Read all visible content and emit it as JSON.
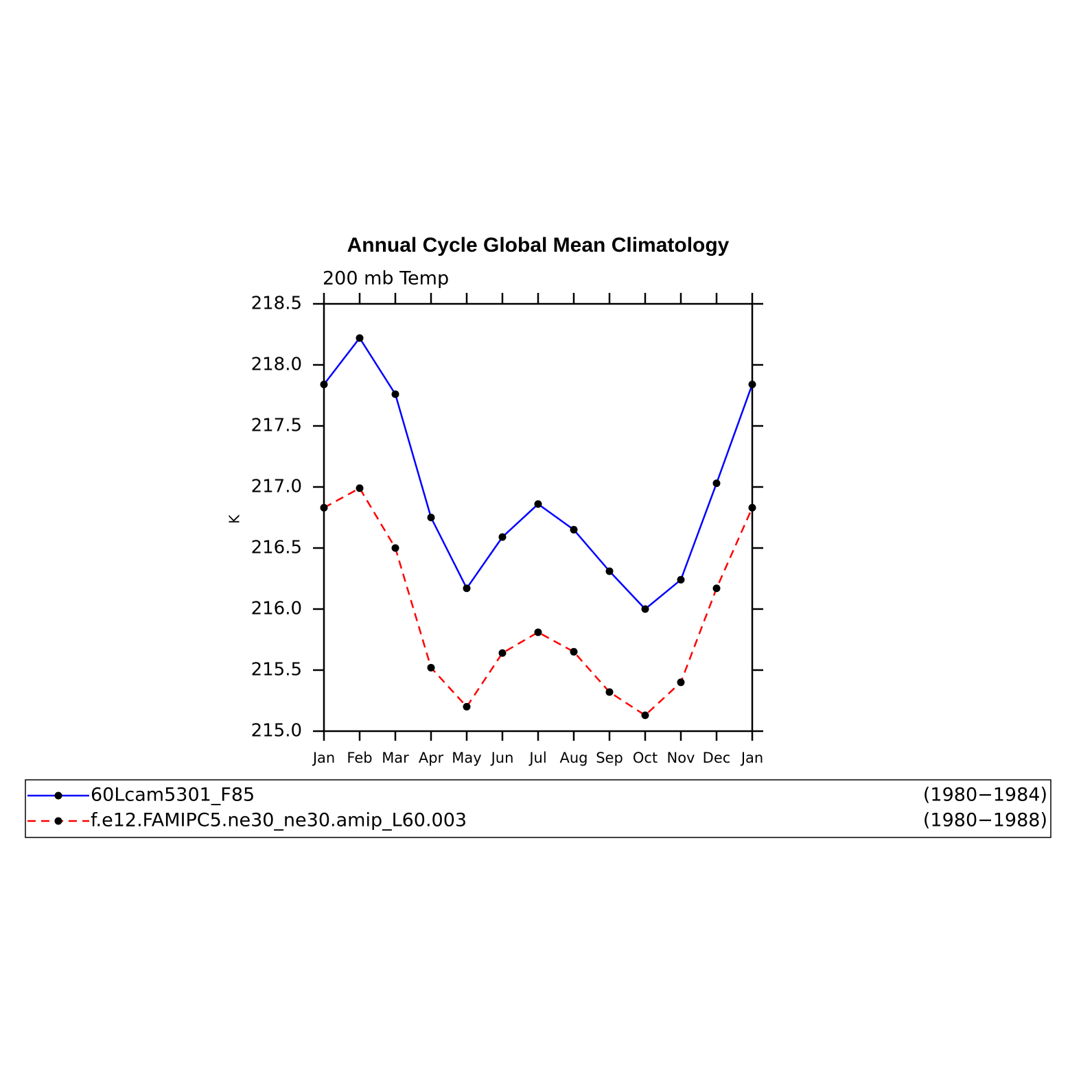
{
  "chart_data": {
    "type": "line",
    "title": "Annual Cycle Global Mean Climatology",
    "subtitle": "200 mb Temp",
    "y_label": "K",
    "categories": [
      "Jan",
      "Feb",
      "Mar",
      "Apr",
      "May",
      "Jun",
      "Jul",
      "Aug",
      "Sep",
      "Oct",
      "Nov",
      "Dec",
      "Jan"
    ],
    "series": [
      {
        "name": "60Lcam5301_F85",
        "period": "(1980−1984)",
        "color": "#0000ff",
        "dash": false,
        "values": [
          217.84,
          218.22,
          217.76,
          216.75,
          216.17,
          216.59,
          216.86,
          216.65,
          216.31,
          216.0,
          216.24,
          217.03,
          217.84
        ]
      },
      {
        "name": "f.e12.FAMIPC5.ne30_ne30.amip_L60.003",
        "period": "(1980−1988)",
        "color": "#ff0000",
        "dash": true,
        "values": [
          216.83,
          216.99,
          216.5,
          215.52,
          215.2,
          215.64,
          215.81,
          215.65,
          215.32,
          215.13,
          215.4,
          216.17,
          216.83
        ]
      }
    ],
    "ylim": [
      215.0,
      218.5
    ],
    "yticks": [
      {
        "value": 215.0,
        "label": "215.0"
      },
      215.5,
      {
        "value": 216.0,
        "label": "216.0"
      },
      216.5,
      {
        "value": 217.0,
        "label": "217.0"
      },
      217.5,
      {
        "value": 218.0,
        "label": "218.0"
      },
      218.5
    ],
    "grid": false
  }
}
